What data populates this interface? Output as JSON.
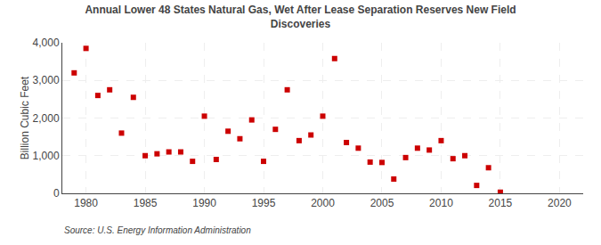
{
  "chart_data": {
    "type": "scatter",
    "title": "Annual Lower 48 States Natural Gas, Wet After Lease Separation Reserves New Field\nDiscoveries",
    "ylabel": "Billion Cubic Feet",
    "annotations": [
      "Source: U.S. Energy Information Administration"
    ],
    "color": "#cc0000",
    "marker": "square",
    "grid": true,
    "xlim": [
      1978,
      2022
    ],
    "ylim": [
      0,
      4000
    ],
    "xticks": [
      1980,
      1985,
      1990,
      1995,
      2000,
      2005,
      2010,
      2015,
      2020
    ],
    "yticks": [
      0,
      {
        "value": 1000,
        "label": "1,000"
      },
      {
        "value": 2000,
        "label": "2,000"
      },
      {
        "value": 3000,
        "label": "3,000"
      },
      {
        "value": 4000,
        "label": "4,000"
      }
    ],
    "x": [
      1979,
      1980,
      1981,
      1982,
      1983,
      1984,
      1985,
      1986,
      1987,
      1988,
      1989,
      1990,
      1991,
      1992,
      1993,
      1994,
      1995,
      1996,
      1997,
      1998,
      1999,
      2000,
      2001,
      2002,
      2003,
      2004,
      2005,
      2006,
      2007,
      2008,
      2009,
      2010,
      2011,
      2012,
      2013,
      2014,
      2015
    ],
    "values": [
      3200,
      3850,
      2600,
      2750,
      1600,
      2550,
      1000,
      1050,
      1100,
      1100,
      850,
      2050,
      900,
      1650,
      1450,
      1950,
      850,
      1700,
      2750,
      1400,
      1550,
      2050,
      3580,
      1350,
      1200,
      830,
      820,
      380,
      950,
      1200,
      1150,
      1400,
      920,
      1000,
      210,
      680,
      30
    ]
  }
}
